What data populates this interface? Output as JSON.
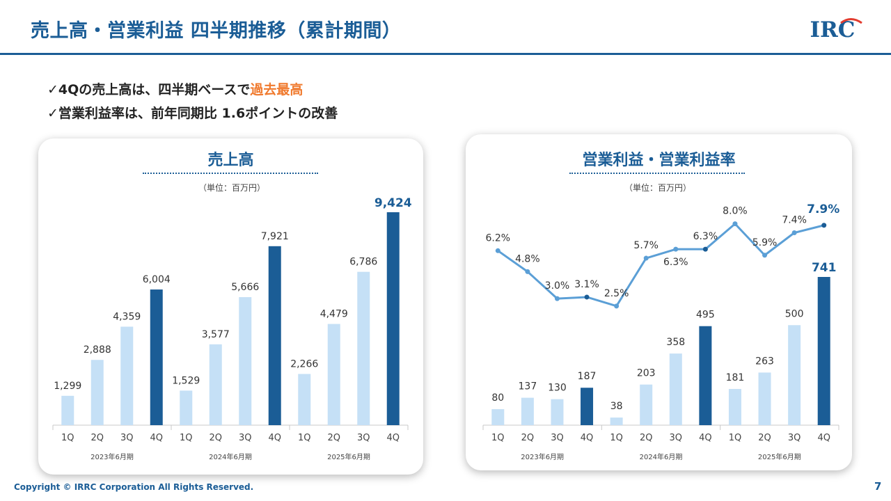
{
  "slide": {
    "title": "売上高・営業利益 四半期推移（累計期間）",
    "logo_text": "IRC",
    "bullets": [
      {
        "check": "✓",
        "pre": "4Qの売上高は、四半期ベースで",
        "highlight": "過去最高",
        "post": ""
      },
      {
        "check": "✓",
        "pre": "営業利益率は、前年同期比 1.6ポイントの改善",
        "highlight": "",
        "post": ""
      }
    ],
    "footer": "Copyright © IRRC Corporation All Rights Reserved.",
    "page_number": "7"
  },
  "colors": {
    "accent": "#1b5d96",
    "highlight": "#f07a2e",
    "bar_light": "#c5e0f6",
    "bar_dark": "#1b5d96",
    "line": "#5b9fd6"
  },
  "chart_data": [
    {
      "type": "bar",
      "title": "売上高",
      "unit": "（単位：百万円）",
      "categories": [
        "1Q",
        "2Q",
        "3Q",
        "4Q",
        "1Q",
        "2Q",
        "3Q",
        "4Q",
        "1Q",
        "2Q",
        "3Q",
        "4Q"
      ],
      "groups": [
        "2023年6月期",
        "2024年6月期",
        "2025年6月期"
      ],
      "values": [
        1299,
        2888,
        4359,
        6004,
        1529,
        3577,
        5666,
        7921,
        2266,
        4479,
        6786,
        9424
      ],
      "labels": [
        "1,299",
        "2,888",
        "4,359",
        "6,004",
        "1,529",
        "3,577",
        "5,666",
        "7,921",
        "2,266",
        "4,479",
        "6,786",
        "9,424"
      ],
      "highlight_index": [
        3,
        7,
        11
      ],
      "emphasis_index": 11,
      "ylim": [
        0,
        9424
      ]
    },
    {
      "type": "bar+line",
      "title": "営業利益・営業利益率",
      "unit": "（単位：百万円）",
      "categories": [
        "1Q",
        "2Q",
        "3Q",
        "4Q",
        "1Q",
        "2Q",
        "3Q",
        "4Q",
        "1Q",
        "2Q",
        "3Q",
        "4Q"
      ],
      "groups": [
        "2023年6月期",
        "2024年6月期",
        "2025年6月期"
      ],
      "series": [
        {
          "kind": "bar",
          "values": [
            80,
            137,
            130,
            187,
            38,
            203,
            358,
            495,
            181,
            263,
            500,
            741
          ],
          "labels": [
            "80",
            "137",
            "130",
            "187",
            "38",
            "203",
            "358",
            "495",
            "181",
            "263",
            "500",
            "741"
          ]
        },
        {
          "kind": "line",
          "values": [
            6.2,
            4.8,
            3.0,
            3.1,
            2.5,
            5.7,
            6.3,
            6.3,
            8.0,
            5.9,
            7.4,
            7.9
          ],
          "labels": [
            "6.2%",
            "4.8%",
            "3.0%",
            "3.1%",
            "2.5%",
            "5.7%",
            "6.3%",
            "6.3%",
            "8.0%",
            "5.9%",
            "7.4%",
            "7.9%"
          ]
        }
      ],
      "highlight_index": [
        3,
        7,
        11
      ],
      "emphasis_index": 11
    }
  ]
}
